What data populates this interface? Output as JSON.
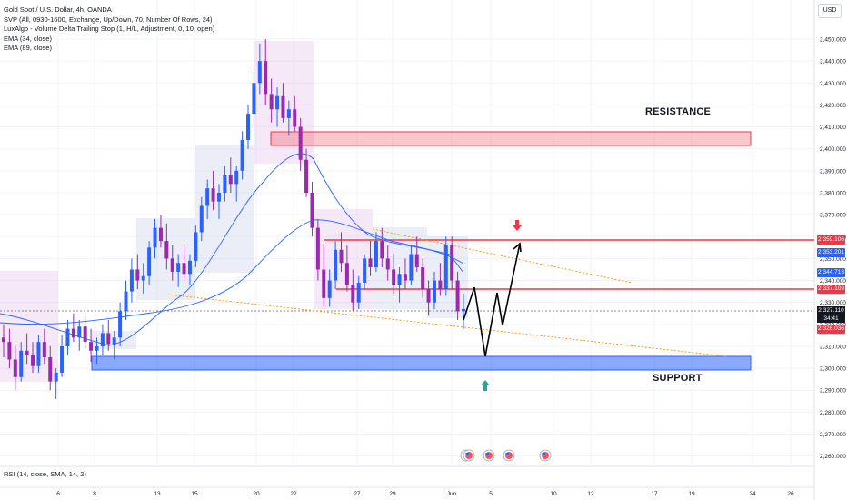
{
  "legend": {
    "title": "Gold Spot / U.S. Dollar, 4h, OANDA",
    "svp": "SVP (All, 0930-1600, Exchange, Up/Down, 70, Number Of Rows, 24)",
    "luxalgo": "LuxAlgo - Volume Delta Trailing Stop (1, H/L, Adjustment, 0, 10, open)",
    "ema34": "EMA (34, close)",
    "ema89": "EMA (89, close)"
  },
  "currency": "USD",
  "rsi_label": "RSI (14, close, SMA, 14, 2)",
  "annotations": {
    "resistance": "RESISTANCE",
    "support": "SUPPORT"
  },
  "price_tags": {
    "t2359": "2,359.106",
    "t2353": "2,353.201",
    "t2344": "2,344.713",
    "t2337": "2,337.109",
    "current": "2,327.110",
    "countdown": "34:41",
    "t2326": "2,326.036"
  },
  "colors": {
    "bull": "#2962ff",
    "bear": "#9c27b0",
    "resistance_zone": "#f23645",
    "support_zone": "#2962ff",
    "level_line": "#f23645",
    "trend_line": "#ff9800",
    "arrow_down": "#f23645",
    "arrow_up": "#26a69a"
  },
  "chart_data": {
    "type": "candlestick",
    "title": "Gold Spot / U.S. Dollar, 4h, OANDA",
    "ylim": [
      2253,
      2458
    ],
    "y_ticks": [
      "2,450.000",
      "2,440.000",
      "2,430.000",
      "2,420.000",
      "2,410.000",
      "2,400.000",
      "2,390.000",
      "2,380.000",
      "2,370.000",
      "2,360.000",
      "2,350.000",
      "2,340.000",
      "2,330.000",
      "2,320.000",
      "2,310.000",
      "2,300.000",
      "2,290.000",
      "2,280.000",
      "2,270.000",
      "2,260.000"
    ],
    "x_ticks": [
      "6",
      "8",
      "13",
      "15",
      "20",
      "22",
      "27",
      "29",
      "Jun",
      "5",
      "10",
      "12",
      "17",
      "19",
      "24",
      "26"
    ],
    "ohlc": [
      [
        2314,
        2320,
        2305,
        2312
      ],
      [
        2312,
        2318,
        2300,
        2304
      ],
      [
        2304,
        2310,
        2290,
        2296
      ],
      [
        2296,
        2312,
        2294,
        2308
      ],
      [
        2308,
        2316,
        2302,
        2306
      ],
      [
        2306,
        2312,
        2298,
        2301
      ],
      [
        2301,
        2315,
        2298,
        2312
      ],
      [
        2312,
        2318,
        2302,
        2305
      ],
      [
        2305,
        2310,
        2290,
        2294
      ],
      [
        2294,
        2300,
        2286,
        2298
      ],
      [
        2298,
        2315,
        2296,
        2310
      ],
      [
        2310,
        2322,
        2306,
        2318
      ],
      [
        2318,
        2325,
        2312,
        2314
      ],
      [
        2314,
        2322,
        2308,
        2319
      ],
      [
        2319,
        2324,
        2309,
        2312
      ],
      [
        2312,
        2318,
        2303,
        2308
      ],
      [
        2308,
        2314,
        2302,
        2310
      ],
      [
        2310,
        2320,
        2306,
        2316
      ],
      [
        2316,
        2322,
        2308,
        2311
      ],
      [
        2311,
        2317,
        2304,
        2314
      ],
      [
        2314,
        2330,
        2310,
        2326
      ],
      [
        2326,
        2340,
        2322,
        2335
      ],
      [
        2335,
        2350,
        2330,
        2345
      ],
      [
        2345,
        2352,
        2336,
        2340
      ],
      [
        2340,
        2348,
        2334,
        2342
      ],
      [
        2342,
        2358,
        2338,
        2355
      ],
      [
        2355,
        2368,
        2350,
        2364
      ],
      [
        2364,
        2370,
        2355,
        2358
      ],
      [
        2358,
        2366,
        2345,
        2350
      ],
      [
        2350,
        2356,
        2340,
        2344
      ],
      [
        2344,
        2352,
        2337,
        2348
      ],
      [
        2348,
        2356,
        2340,
        2343
      ],
      [
        2343,
        2352,
        2338,
        2349
      ],
      [
        2349,
        2365,
        2346,
        2362
      ],
      [
        2362,
        2378,
        2358,
        2374
      ],
      [
        2374,
        2386,
        2368,
        2382
      ],
      [
        2382,
        2390,
        2372,
        2376
      ],
      [
        2376,
        2384,
        2368,
        2380
      ],
      [
        2380,
        2392,
        2376,
        2388
      ],
      [
        2388,
        2396,
        2380,
        2384
      ],
      [
        2384,
        2392,
        2376,
        2390
      ],
      [
        2390,
        2408,
        2386,
        2404
      ],
      [
        2404,
        2420,
        2400,
        2416
      ],
      [
        2416,
        2435,
        2410,
        2430
      ],
      [
        2430,
        2448,
        2425,
        2440
      ],
      [
        2440,
        2450,
        2420,
        2425
      ],
      [
        2425,
        2432,
        2412,
        2418
      ],
      [
        2418,
        2428,
        2410,
        2424
      ],
      [
        2424,
        2430,
        2412,
        2414
      ],
      [
        2414,
        2422,
        2406,
        2418
      ],
      [
        2418,
        2424,
        2408,
        2410
      ],
      [
        2410,
        2414,
        2390,
        2395
      ],
      [
        2395,
        2400,
        2378,
        2380
      ],
      [
        2380,
        2385,
        2360,
        2364
      ],
      [
        2364,
        2368,
        2340,
        2345
      ],
      [
        2345,
        2356,
        2328,
        2332
      ],
      [
        2332,
        2345,
        2328,
        2340
      ],
      [
        2340,
        2358,
        2336,
        2354
      ],
      [
        2354,
        2362,
        2344,
        2348
      ],
      [
        2348,
        2356,
        2335,
        2338
      ],
      [
        2338,
        2345,
        2326,
        2330
      ],
      [
        2330,
        2342,
        2327,
        2339
      ],
      [
        2339,
        2352,
        2336,
        2350
      ],
      [
        2350,
        2358,
        2342,
        2346
      ],
      [
        2346,
        2362,
        2344,
        2358
      ],
      [
        2358,
        2364,
        2346,
        2350
      ],
      [
        2350,
        2356,
        2340,
        2345
      ],
      [
        2345,
        2352,
        2334,
        2338
      ],
      [
        2338,
        2346,
        2330,
        2343
      ],
      [
        2343,
        2350,
        2336,
        2340
      ],
      [
        2340,
        2356,
        2338,
        2352
      ],
      [
        2352,
        2360,
        2344,
        2346
      ],
      [
        2346,
        2350,
        2332,
        2336
      ],
      [
        2336,
        2340,
        2324,
        2330
      ],
      [
        2330,
        2344,
        2327,
        2340
      ],
      [
        2340,
        2348,
        2333,
        2336
      ],
      [
        2336,
        2360,
        2333,
        2356
      ],
      [
        2356,
        2360,
        2336,
        2340
      ],
      [
        2340,
        2344,
        2322,
        2326
      ],
      [
        2326,
        2334,
        2318,
        2327
      ]
    ]
  }
}
